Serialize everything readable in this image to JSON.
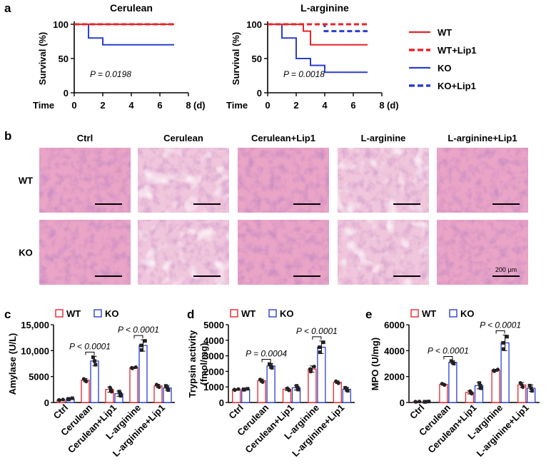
{
  "colors": {
    "wt": "#e8242a",
    "ko": "#2a3fd1",
    "he_pink": "#e9a4c6",
    "he_purple": "#8a4b9a"
  },
  "panel_letters": {
    "a": "a",
    "b": "b",
    "c": "c",
    "d": "d",
    "e": "e"
  },
  "chart_data": [
    {
      "type": "line",
      "subtype": "survival-step",
      "title": "Cerulean",
      "ylabel": "Survival (%)",
      "xlabel": "Time",
      "xunit": "(d)",
      "xlim": [
        0,
        8
      ],
      "ylim": [
        0,
        100
      ],
      "xticks": [
        "0",
        "2",
        "4",
        "6",
        "8"
      ],
      "yticks": [
        "0",
        "50",
        "100"
      ],
      "pvalue": "P = 0.0198",
      "series": [
        {
          "key": "wt",
          "x": [
            0,
            7
          ],
          "y": [
            100,
            100
          ]
        },
        {
          "key": "wt_lip1",
          "x": [
            0,
            7
          ],
          "y": [
            100,
            100
          ]
        },
        {
          "key": "ko",
          "x": [
            0,
            1,
            1,
            2,
            2,
            7
          ],
          "y": [
            100,
            100,
            80,
            80,
            70,
            70
          ]
        },
        {
          "key": "ko_lip1",
          "x": [
            0,
            7
          ],
          "y": [
            100,
            100
          ]
        }
      ]
    },
    {
      "type": "line",
      "subtype": "survival-step",
      "title": "L-arginine",
      "ylabel": "Survival (%)",
      "xlabel": "Time",
      "xunit": "(d)",
      "xlim": [
        0,
        8
      ],
      "ylim": [
        0,
        100
      ],
      "xticks": [
        "0",
        "2",
        "4",
        "6",
        "8"
      ],
      "yticks": [
        "0",
        "50",
        "100"
      ],
      "pvalue": "P = 0.0018",
      "series": [
        {
          "key": "wt",
          "x": [
            0,
            2.5,
            2.5,
            3,
            3,
            7
          ],
          "y": [
            100,
            100,
            90,
            90,
            70,
            70
          ]
        },
        {
          "key": "wt_lip1",
          "x": [
            0,
            7
          ],
          "y": [
            100,
            100
          ]
        },
        {
          "key": "ko",
          "x": [
            0,
            1,
            1,
            2,
            2,
            3,
            3,
            4,
            4,
            7
          ],
          "y": [
            100,
            100,
            80,
            80,
            50,
            50,
            40,
            40,
            30,
            30
          ]
        },
        {
          "key": "ko_lip1",
          "x": [
            0,
            4,
            4,
            7
          ],
          "y": [
            100,
            100,
            90,
            90
          ]
        }
      ]
    },
    {
      "type": "bar",
      "ylabel": "Amylase (U/L)",
      "categories": [
        "Ctrl",
        "Cerulean",
        "Cerulean+Lip1",
        "L-arginine",
        "L-arginine+Lip1"
      ],
      "ylim": [
        0,
        15000
      ],
      "yticks": [
        "0",
        "5000",
        "10,000",
        "15,000"
      ],
      "series": [
        {
          "name": "WT",
          "values": [
            500,
            4300,
            2500,
            6700,
            3200
          ],
          "errors": [
            80,
            300,
            500,
            150,
            300
          ]
        },
        {
          "name": "KO",
          "values": [
            700,
            8000,
            1700,
            11000,
            2800
          ],
          "errors": [
            150,
            900,
            500,
            1100,
            500
          ]
        }
      ],
      "comparisons": [
        {
          "label": "P < 0.0001",
          "category": 1
        },
        {
          "label": "P < 0.0001",
          "category": 3
        }
      ]
    },
    {
      "type": "bar",
      "ylabel": "Trypsin activity",
      "yunit": "(fmol/mg)",
      "categories": [
        "Ctrl",
        "Cerulean",
        "Cerulean+Lip1",
        "L-arginine",
        "L-arginine+Lip1"
      ],
      "ylim": [
        0,
        5000
      ],
      "yticks": [
        "0",
        "1000",
        "2000",
        "3000",
        "4000",
        "5000"
      ],
      "series": [
        {
          "name": "WT",
          "values": [
            830,
            1400,
            850,
            2150,
            1300
          ],
          "errors": [
            40,
            100,
            80,
            200,
            80
          ]
        },
        {
          "name": "KO",
          "values": [
            850,
            2350,
            950,
            3550,
            850
          ],
          "errors": [
            40,
            150,
            150,
            400,
            120
          ]
        }
      ],
      "comparisons": [
        {
          "label": "P = 0.0004",
          "category": 1
        },
        {
          "label": "P < 0.0001",
          "category": 3
        }
      ]
    },
    {
      "type": "bar",
      "ylabel": "MPO (U/mg)",
      "categories": [
        "Ctrl",
        "Cerulean",
        "Cerulean+Lip1",
        "L-arginine",
        "L-arginine+Lip1"
      ],
      "ylim": [
        0,
        6000
      ],
      "yticks": [
        "0",
        "2000",
        "4000",
        "6000"
      ],
      "series": [
        {
          "name": "WT",
          "values": [
            60,
            1400,
            780,
            2480,
            1350
          ],
          "errors": [
            20,
            60,
            120,
            80,
            200
          ]
        },
        {
          "name": "KO",
          "values": [
            60,
            3100,
            1300,
            4600,
            1100
          ],
          "errors": [
            20,
            120,
            250,
            600,
            250
          ]
        }
      ],
      "comparisons": [
        {
          "label": "P < 0.0001",
          "category": 1
        },
        {
          "label": "P < 0.0001",
          "category": 3
        }
      ]
    }
  ],
  "survival_legend": [
    {
      "key": "wt",
      "label": "WT",
      "style": "solid",
      "color": "#e8242a"
    },
    {
      "key": "wt_lip1",
      "label": "WT+Lip1",
      "style": "dashed",
      "color": "#e8242a"
    },
    {
      "key": "ko",
      "label": "KO",
      "style": "solid",
      "color": "#2a3fd1"
    },
    {
      "key": "ko_lip1",
      "label": "KO+Lip1",
      "style": "dashed",
      "color": "#2a3fd1"
    }
  ],
  "histology": {
    "columns": [
      "Ctrl",
      "Cerulean",
      "Cerulean+Lip1",
      "L-arginine",
      "L-arginine+Lip1"
    ],
    "rows": [
      "WT",
      "KO"
    ],
    "scale_bar": "200 μm"
  }
}
